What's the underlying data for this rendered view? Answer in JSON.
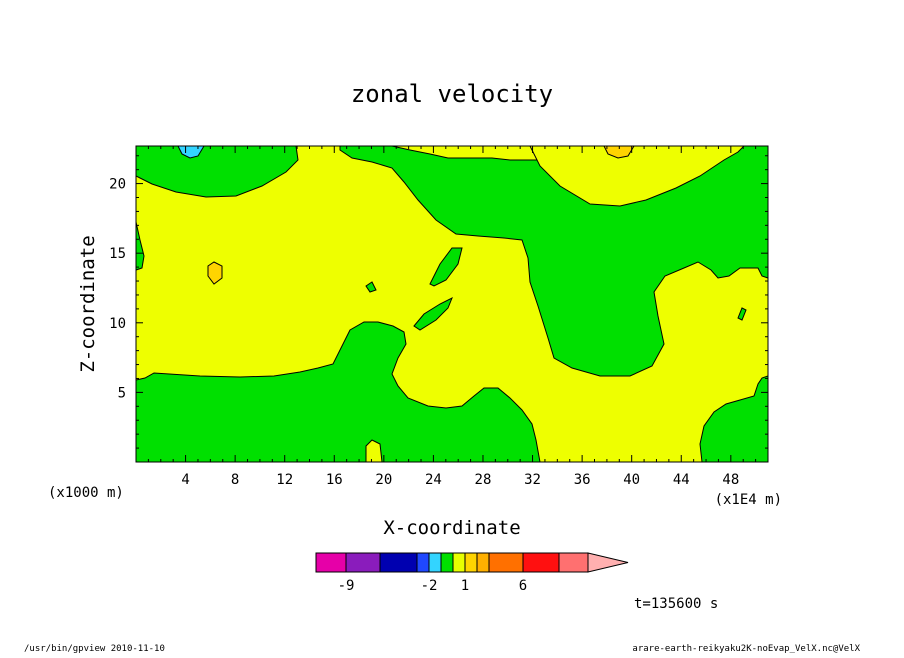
{
  "chart_data": {
    "type": "heatmap",
    "title": "zonal velocity",
    "xlabel": "X-coordinate",
    "ylabel": "Z-coordinate",
    "x_ticks": [
      "4",
      "8",
      "12",
      "16",
      "20",
      "24",
      "28",
      "32",
      "36",
      "40",
      "44",
      "48"
    ],
    "x_tick_values": [
      4,
      8,
      12,
      16,
      20,
      24,
      28,
      32,
      36,
      40,
      44,
      48
    ],
    "y_ticks": [
      "5",
      "10",
      "15",
      "20"
    ],
    "y_tick_values": [
      5,
      10,
      15,
      20
    ],
    "xlim": [
      0,
      51
    ],
    "ylim": [
      0,
      22.7
    ],
    "x_unit": "(x1E4 m)",
    "y_unit": "(x1000 m)",
    "grid": false,
    "colorbar": {
      "labels": [
        "-9",
        "-2",
        "1",
        "6"
      ],
      "label_levels": [
        -9,
        -2,
        1,
        6
      ],
      "levels": [
        -9,
        -6,
        -3,
        -2,
        -1,
        0,
        1,
        2,
        3,
        4,
        6,
        9,
        12
      ],
      "colors": [
        "#e600a8",
        "#8a1cbc",
        "#0000b0",
        "#1f48ff",
        "#33d4ff",
        "#00e000",
        "#e8ff00",
        "#ffd400",
        "#ffb000",
        "#ff7000",
        "#ff1010",
        "#ff7070",
        "#ffb0b0"
      ]
    },
    "regions": [
      {
        "value": "1",
        "color": "#eeff00",
        "description": "background positive band"
      },
      {
        "value": "0",
        "color": "#00e000",
        "description": "upper-left band near top"
      },
      {
        "value": "0",
        "color": "#00e000",
        "description": "lower band z < 6"
      },
      {
        "value": "0",
        "color": "#00e000",
        "description": "right-middle region x 22-51"
      },
      {
        "value": "-1",
        "color": "#33d4ff",
        "description": "small cell near x=4.5, top"
      },
      {
        "value": "2",
        "color": "#ffd400",
        "description": "small cells near x=6.3,z=13.8 and x=39,top"
      }
    ],
    "time_label": "t=135600 s"
  },
  "footer": {
    "left": "/usr/bin/gpview   2010-11-10",
    "right": "arare-earth-reikyaku2K-noEvap_VelX.nc@VelX"
  }
}
